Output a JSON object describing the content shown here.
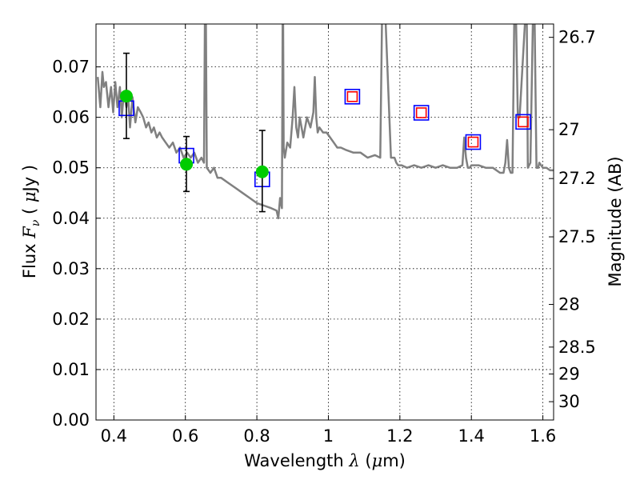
{
  "chart_data": {
    "type": "scatter",
    "xlabel": {
      "prefix": "Wavelength  ",
      "symbol": "λ",
      "suffix": " (",
      "mu": "μ",
      "unit": "m)"
    },
    "ylabel": {
      "prefix": "Flux  ",
      "symbol": "F",
      "sub": "ν",
      "suffix": "  ( ",
      "mu": "μ",
      "unit": "Jy )"
    },
    "y2label": "Magnitude (AB)",
    "xlim": [
      0.35,
      1.63
    ],
    "ylim": [
      0.0,
      0.0785
    ],
    "grid": true,
    "x_ticks": [
      "0.4",
      "0.6",
      "0.8",
      "1",
      "1.2",
      "1.4",
      "1.6"
    ],
    "y_ticks": [
      "0.00",
      "0.01",
      "0.02",
      "0.03",
      "0.04",
      "0.05",
      "0.06",
      "0.07"
    ],
    "y2_ticks": [
      "26.7",
      "27",
      "27.2",
      "27.5",
      "28",
      "28.5",
      "29",
      "30"
    ],
    "series": [
      {
        "kind": "line",
        "color": "#808080",
        "x": [
          0.355,
          0.362,
          0.368,
          0.372,
          0.378,
          0.385,
          0.392,
          0.398,
          0.404,
          0.41,
          0.417,
          0.422,
          0.428,
          0.435,
          0.44,
          0.445,
          0.452,
          0.46,
          0.467,
          0.475,
          0.482,
          0.49,
          0.497,
          0.505,
          0.512,
          0.52,
          0.528,
          0.535,
          0.545,
          0.555,
          0.565,
          0.575,
          0.585,
          0.595,
          0.605,
          0.615,
          0.625,
          0.635,
          0.645,
          0.652,
          0.6545,
          0.6555,
          0.6565,
          0.6575,
          0.66,
          0.67,
          0.68,
          0.69,
          0.7,
          0.72,
          0.74,
          0.76,
          0.78,
          0.8,
          0.82,
          0.84,
          0.855,
          0.86,
          0.865,
          0.87,
          0.872,
          0.8735,
          0.875,
          0.878,
          0.885,
          0.893,
          0.9,
          0.905,
          0.91,
          0.915,
          0.92,
          0.93,
          0.94,
          0.95,
          0.958,
          0.962,
          0.966,
          0.97,
          0.975,
          0.985,
          0.995,
          1.005,
          1.015,
          1.025,
          1.035,
          1.05,
          1.07,
          1.09,
          1.11,
          1.13,
          1.145,
          1.15,
          1.155,
          1.16,
          1.175,
          1.185,
          1.19,
          1.195,
          1.205,
          1.22,
          1.24,
          1.26,
          1.28,
          1.3,
          1.32,
          1.34,
          1.36,
          1.375,
          1.38,
          1.385,
          1.39,
          1.395,
          1.4,
          1.42,
          1.44,
          1.46,
          1.48,
          1.49,
          1.495,
          1.5,
          1.505,
          1.51,
          1.515,
          1.52,
          1.525,
          1.53,
          1.535,
          1.55,
          1.555,
          1.558,
          1.565,
          1.572,
          1.577,
          1.582,
          1.587,
          1.59,
          1.6,
          1.61,
          1.62,
          1.63
        ],
        "y": [
          0.068,
          0.062,
          0.069,
          0.066,
          0.067,
          0.062,
          0.066,
          0.061,
          0.067,
          0.062,
          0.066,
          0.06,
          0.065,
          0.062,
          0.064,
          0.058,
          0.064,
          0.059,
          0.062,
          0.061,
          0.06,
          0.058,
          0.059,
          0.057,
          0.058,
          0.056,
          0.057,
          0.056,
          0.055,
          0.054,
          0.055,
          0.053,
          0.054,
          0.052,
          0.053,
          0.052,
          0.053,
          0.051,
          0.052,
          0.051,
          0.079,
          0.079,
          0.079,
          0.079,
          0.05,
          0.049,
          0.05,
          0.048,
          0.048,
          0.047,
          0.046,
          0.045,
          0.044,
          0.043,
          0.0425,
          0.042,
          0.0415,
          0.04,
          0.044,
          0.042,
          0.079,
          0.079,
          0.054,
          0.052,
          0.055,
          0.054,
          0.06,
          0.066,
          0.058,
          0.056,
          0.06,
          0.056,
          0.06,
          0.058,
          0.061,
          0.068,
          0.06,
          0.057,
          0.058,
          0.057,
          0.057,
          0.056,
          0.055,
          0.054,
          0.054,
          0.0535,
          0.053,
          0.053,
          0.052,
          0.0525,
          0.052,
          0.079,
          0.079,
          0.079,
          0.052,
          0.052,
          0.051,
          0.0505,
          0.0505,
          0.05,
          0.0505,
          0.05,
          0.0505,
          0.05,
          0.0505,
          0.05,
          0.05,
          0.0505,
          0.056,
          0.052,
          0.05,
          0.05,
          0.0505,
          0.0505,
          0.05,
          0.05,
          0.049,
          0.049,
          0.051,
          0.0555,
          0.05,
          0.049,
          0.049,
          0.079,
          0.079,
          0.06,
          0.06,
          0.079,
          0.079,
          0.05,
          0.051,
          0.079,
          0.079,
          0.05,
          0.05,
          0.051,
          0.05,
          0.05,
          0.0495,
          0.0495
        ]
      },
      {
        "kind": "points",
        "marker": "open-square",
        "color": "#0000ff",
        "x": [
          0.435,
          0.603,
          0.815,
          1.067,
          1.26,
          1.405,
          1.545
        ],
        "y": [
          0.0618,
          0.0524,
          0.0477,
          0.0641,
          0.0609,
          0.0551,
          0.0591
        ]
      },
      {
        "kind": "points",
        "marker": "open-square-small",
        "color": "#ff0000",
        "x": [
          1.067,
          1.26,
          1.405,
          1.545
        ],
        "y": [
          0.0641,
          0.0609,
          0.0551,
          0.0591
        ]
      },
      {
        "kind": "errorbar",
        "marker": "filled-circle",
        "color": "#00cc00",
        "x": [
          0.435,
          0.603,
          0.815
        ],
        "y": [
          0.0642,
          0.0507,
          0.0492
        ],
        "yerr_low": [
          0.0558,
          0.0453,
          0.0413
        ],
        "yerr_high": [
          0.0727,
          0.0562,
          0.0574
        ]
      }
    ]
  }
}
